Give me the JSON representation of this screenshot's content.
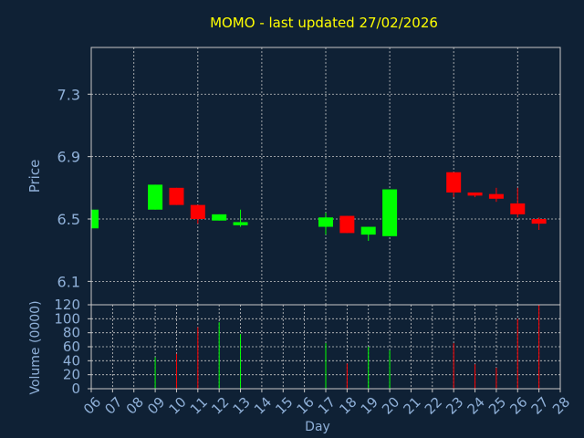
{
  "colors": {
    "background": "#0f2135",
    "plot_border": "#c8c8c8",
    "grid": "#c8c8c8",
    "title": "#ffff00",
    "axis_text": "#8fb0d8",
    "up": "#00ff00",
    "down": "#ff0000"
  },
  "chart_data": [
    {
      "type": "candlestick",
      "title": "MOMO - last updated 27/02/2026",
      "ylabel": "Price",
      "ylim": [
        5.95,
        7.6
      ],
      "yticks": [
        "6.1",
        "6.5",
        "6.9",
        "7.3"
      ],
      "grid": true,
      "candles": [
        {
          "day": "06",
          "open": 6.44,
          "high": 6.56,
          "low": 6.44,
          "close": 6.56,
          "dir": "up"
        },
        {
          "day": "09",
          "open": 6.56,
          "high": 6.72,
          "low": 6.56,
          "close": 6.72,
          "dir": "up"
        },
        {
          "day": "10",
          "open": 6.7,
          "high": 6.7,
          "low": 6.59,
          "close": 6.59,
          "dir": "down"
        },
        {
          "day": "11",
          "open": 6.59,
          "high": 6.59,
          "low": 6.47,
          "close": 6.5,
          "dir": "down"
        },
        {
          "day": "12",
          "open": 6.49,
          "high": 6.53,
          "low": 6.49,
          "close": 6.53,
          "dir": "up"
        },
        {
          "day": "13",
          "open": 6.46,
          "high": 6.56,
          "low": 6.45,
          "close": 6.48,
          "dir": "up"
        },
        {
          "day": "17",
          "open": 6.45,
          "high": 6.54,
          "low": 6.4,
          "close": 6.51,
          "dir": "up"
        },
        {
          "day": "18",
          "open": 6.52,
          "high": 6.52,
          "low": 6.41,
          "close": 6.41,
          "dir": "down"
        },
        {
          "day": "19",
          "open": 6.4,
          "high": 6.45,
          "low": 6.36,
          "close": 6.45,
          "dir": "up"
        },
        {
          "day": "20",
          "open": 6.39,
          "high": 6.69,
          "low": 6.39,
          "close": 6.69,
          "dir": "up"
        },
        {
          "day": "23",
          "open": 6.8,
          "high": 6.8,
          "low": 6.64,
          "close": 6.67,
          "dir": "down"
        },
        {
          "day": "24",
          "open": 6.67,
          "high": 6.67,
          "low": 6.64,
          "close": 6.65,
          "dir": "down"
        },
        {
          "day": "25",
          "open": 6.66,
          "high": 6.7,
          "low": 6.61,
          "close": 6.63,
          "dir": "down"
        },
        {
          "day": "26",
          "open": 6.6,
          "high": 6.7,
          "low": 6.51,
          "close": 6.53,
          "dir": "down"
        },
        {
          "day": "27",
          "open": 6.5,
          "high": 6.51,
          "low": 6.43,
          "close": 6.47,
          "dir": "down"
        }
      ]
    },
    {
      "type": "bar",
      "xlabel": "Day",
      "ylabel": "Volume (0000)",
      "ylim": [
        0,
        120
      ],
      "yticks": [
        "0",
        "20",
        "40",
        "60",
        "80",
        "100",
        "120"
      ],
      "xticks": [
        "06",
        "07",
        "08",
        "09",
        "10",
        "11",
        "12",
        "13",
        "14",
        "15",
        "16",
        "17",
        "18",
        "19",
        "20",
        "21",
        "22",
        "23",
        "24",
        "25",
        "26",
        "27",
        "28"
      ],
      "grid": true,
      "bars": [
        {
          "day": "09",
          "value": 45,
          "dir": "up"
        },
        {
          "day": "10",
          "value": 50,
          "dir": "down"
        },
        {
          "day": "11",
          "value": 88,
          "dir": "down"
        },
        {
          "day": "12",
          "value": 95,
          "dir": "up"
        },
        {
          "day": "13",
          "value": 78,
          "dir": "up"
        },
        {
          "day": "17",
          "value": 65,
          "dir": "up"
        },
        {
          "day": "18",
          "value": 36,
          "dir": "down"
        },
        {
          "day": "19",
          "value": 60,
          "dir": "up"
        },
        {
          "day": "20",
          "value": 55,
          "dir": "up"
        },
        {
          "day": "23",
          "value": 65,
          "dir": "down"
        },
        {
          "day": "24",
          "value": 35,
          "dir": "down"
        },
        {
          "day": "25",
          "value": 30,
          "dir": "down"
        },
        {
          "day": "26",
          "value": 100,
          "dir": "down"
        },
        {
          "day": "27",
          "value": 120,
          "dir": "down"
        }
      ]
    }
  ]
}
